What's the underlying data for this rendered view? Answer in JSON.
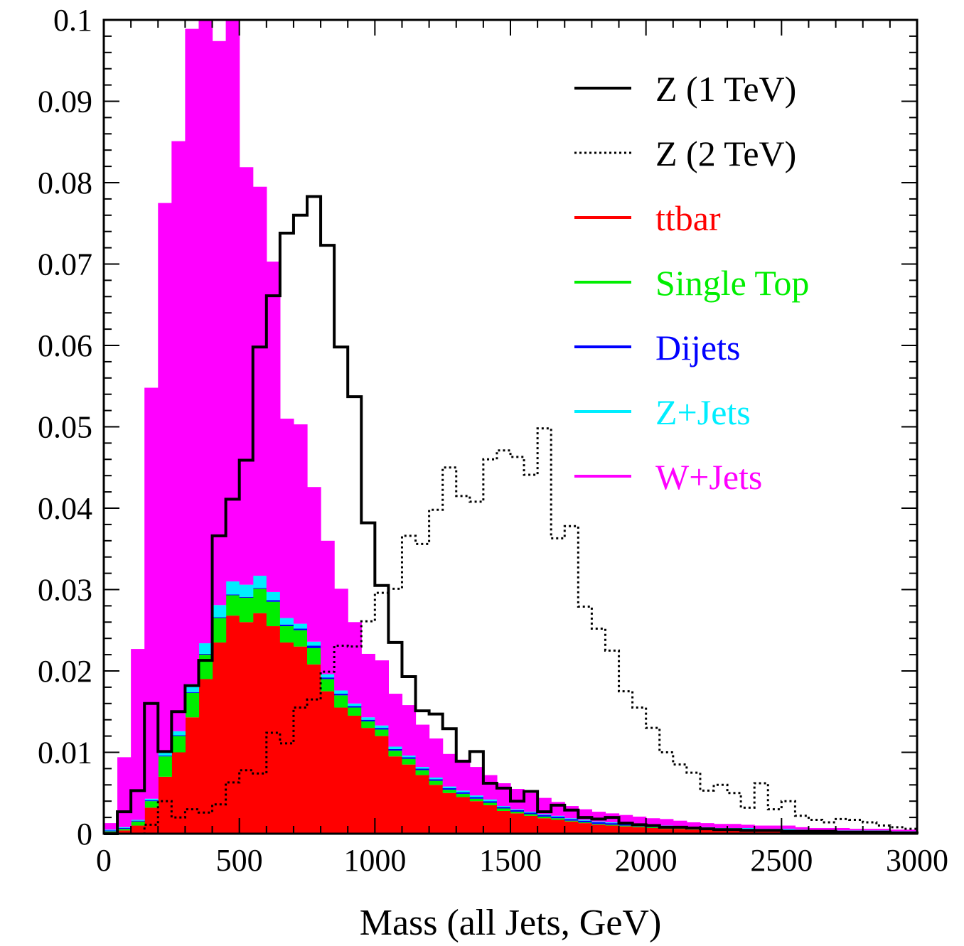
{
  "chart_data": {
    "type": "bar",
    "title": "",
    "xlabel": "Mass (all Jets, GeV)",
    "ylabel": "",
    "xlim": [
      0,
      3000
    ],
    "ylim": [
      0,
      0.1
    ],
    "grid": false,
    "legend_position": "top-right",
    "bin_width": 50,
    "x_tick_labels": [
      "0",
      "500",
      "1000",
      "1500",
      "2000",
      "2500",
      "3000"
    ],
    "y_tick_labels": [
      "0",
      "0.01",
      "0.02",
      "0.03",
      "0.04",
      "0.05",
      "0.06",
      "0.07",
      "0.08",
      "0.09",
      "0.1"
    ],
    "stack_order_note_colors": {
      "ttbar": "#ff0000",
      "single_top": "#00ee00",
      "dijets": "#0000ff",
      "zjets": "#00eeff",
      "wjets": "#ff00ff"
    },
    "stacked_series": [
      {
        "name": "ttbar",
        "color": "#ff0000",
        "values": [
          0.0002,
          0.0004,
          0.001,
          0.0032,
          0.007,
          0.01,
          0.0143,
          0.019,
          0.0235,
          0.0268,
          0.026,
          0.0271,
          0.0255,
          0.0235,
          0.023,
          0.0208,
          0.0175,
          0.0155,
          0.0145,
          0.013,
          0.012,
          0.0095,
          0.0085,
          0.0072,
          0.006,
          0.005,
          0.0045,
          0.004,
          0.0035,
          0.0028,
          0.0025,
          0.0022,
          0.0019,
          0.0017,
          0.0015,
          0.0013,
          0.0011,
          0.001,
          0.0009,
          0.0008,
          0.0007,
          0.0006,
          0.0006,
          0.0005,
          0.0005,
          0.0004,
          0.0004,
          0.0004,
          0.0003,
          0.0003,
          0.0003,
          0.0003,
          0.0002,
          0.0002,
          0.0002,
          0.0002,
          0.0002,
          0.0002,
          0.0001,
          0.0001
        ]
      },
      {
        "name": "Single Top",
        "color": "#00ee00",
        "values": [
          0.0001,
          0.0002,
          0.0005,
          0.0008,
          0.0025,
          0.002,
          0.003,
          0.003,
          0.003,
          0.0025,
          0.003,
          0.003,
          0.003,
          0.002,
          0.002,
          0.002,
          0.0015,
          0.0015,
          0.001,
          0.0008,
          0.0008,
          0.0007,
          0.0007,
          0.0006,
          0.0005,
          0.0004,
          0.0004,
          0.0003,
          0.0003,
          0.0003,
          0.0002,
          0.0002,
          0.0002,
          0.0002,
          0.0001,
          0.0001,
          0.0001,
          0.0001,
          0.0001,
          0.0001,
          0.0001,
          0.0001,
          0.0001,
          0.0001,
          0.0001,
          0.0001,
          0.0001,
          0.0001,
          0.0001,
          0.0001,
          0.0001,
          0.0,
          0.0,
          0.0,
          0.0,
          0.0,
          0.0,
          0.0,
          0.0,
          0.0
        ]
      },
      {
        "name": "Dijets",
        "color": "#0000ff",
        "values": [
          0.0001,
          0.0001,
          0.0001,
          0.0001,
          0.0001,
          0.0001,
          0.0001,
          0.0001,
          0.0001,
          0.0001,
          0.0001,
          0.0001,
          0.0002,
          0.0002,
          0.0002,
          0.0003,
          0.0002,
          0.0002,
          0.0002,
          0.0002,
          0.0002,
          0.0002,
          0.0002,
          0.0002,
          0.0002,
          0.0002,
          0.0002,
          0.0002,
          0.0002,
          0.0002,
          0.0002,
          0.0002,
          0.0002,
          0.0002,
          0.0002,
          0.0002,
          0.0002,
          0.0002,
          0.0002,
          0.0002,
          0.0002,
          0.0002,
          0.0001,
          0.0001,
          0.0001,
          0.0001,
          0.0001,
          0.0001,
          0.0001,
          0.0001,
          0.0001,
          0.0001,
          0.0001,
          0.0001,
          0.0001,
          0.0001,
          0.0001,
          0.0001,
          0.0001,
          0.0001
        ]
      },
      {
        "name": "Z+Jets",
        "color": "#00eeff",
        "values": [
          0.0001,
          0.0001,
          0.0001,
          0.0002,
          0.0004,
          0.0005,
          0.001,
          0.0013,
          0.0015,
          0.0016,
          0.0015,
          0.0015,
          0.001,
          0.0008,
          0.0006,
          0.0005,
          0.0004,
          0.0004,
          0.0003,
          0.0003,
          0.0003,
          0.0003,
          0.0002,
          0.0002,
          0.0002,
          0.0002,
          0.0002,
          0.0002,
          0.0002,
          0.0001,
          0.0001,
          0.0001,
          0.0001,
          0.0001,
          0.0001,
          0.0001,
          0.0001,
          0.0001,
          0.0001,
          0.0001,
          0.0001,
          0.0001,
          0.0001,
          0.0001,
          0.0001,
          0.0001,
          0.0001,
          0.0001,
          0.0001,
          0.0001,
          0.0001,
          0.0001,
          0.0001,
          0.0001,
          0.0001,
          0.0001,
          0.0001,
          0.0001,
          0.0001,
          0.0001
        ]
      },
      {
        "name": "W+Jets",
        "color": "#ff00ff",
        "values": [
          0.0008,
          0.0086,
          0.021,
          0.0505,
          0.0675,
          0.0725,
          0.0805,
          0.077,
          0.0693,
          0.071,
          0.0513,
          0.0478,
          0.0406,
          0.0245,
          0.0245,
          0.019,
          0.0164,
          0.0125,
          0.01,
          0.0078,
          0.008,
          0.0065,
          0.0062,
          0.0052,
          0.0048,
          0.004,
          0.0038,
          0.0035,
          0.003,
          0.0028,
          0.0025,
          0.0023,
          0.002,
          0.0017,
          0.0015,
          0.0013,
          0.0012,
          0.0011,
          0.001,
          0.0009,
          0.0008,
          0.0008,
          0.0007,
          0.0006,
          0.0005,
          0.0005,
          0.0005,
          0.0004,
          0.0004,
          0.0004,
          0.0004,
          0.0003,
          0.0003,
          0.0003,
          0.0003,
          0.0002,
          0.0002,
          0.0002,
          0.0002,
          0.0002
        ]
      }
    ],
    "line_series": [
      {
        "name": "Z (1 TeV)",
        "color": "#000000",
        "style": "solid",
        "values": [
          0.0,
          0.0027,
          0.0053,
          0.016,
          0.0101,
          0.015,
          0.0182,
          0.0213,
          0.0366,
          0.0411,
          0.0459,
          0.0598,
          0.0661,
          0.0738,
          0.076,
          0.0783,
          0.0723,
          0.0598,
          0.0537,
          0.0382,
          0.0305,
          0.0235,
          0.0193,
          0.0151,
          0.0147,
          0.0129,
          0.0089,
          0.0101,
          0.0062,
          0.0056,
          0.004,
          0.0052,
          0.0027,
          0.0035,
          0.0029,
          0.002,
          0.0018,
          0.002,
          0.0013,
          0.0011,
          0.001,
          0.0008,
          0.0008,
          0.0007,
          0.0006,
          0.0005,
          0.0005,
          0.0004,
          0.0004,
          0.0004,
          0.0003,
          0.0003,
          0.0003,
          0.0003,
          0.0002,
          0.0002,
          0.0002,
          0.0002,
          0.0001,
          0.0001
        ]
      },
      {
        "name": "Z (2 TeV)",
        "color": "#000000",
        "style": "dotted",
        "values": [
          0.0,
          0.0,
          0.0,
          0.0011,
          0.004,
          0.002,
          0.003,
          0.0026,
          0.0036,
          0.0063,
          0.0078,
          0.0074,
          0.0124,
          0.0111,
          0.0155,
          0.0165,
          0.0199,
          0.0231,
          0.023,
          0.0261,
          0.0296,
          0.0301,
          0.0366,
          0.0356,
          0.0398,
          0.045,
          0.0415,
          0.0408,
          0.046,
          0.0471,
          0.0463,
          0.0441,
          0.0498,
          0.0363,
          0.0378,
          0.0279,
          0.0252,
          0.0225,
          0.0175,
          0.0155,
          0.013,
          0.01,
          0.0085,
          0.0075,
          0.0053,
          0.006,
          0.005,
          0.0032,
          0.0062,
          0.003,
          0.004,
          0.0022,
          0.0017,
          0.0014,
          0.0018,
          0.0017,
          0.0014,
          0.001,
          0.0008,
          0.0006
        ]
      }
    ],
    "legend": [
      {
        "label": "Z (1 TeV)",
        "color": "#000000",
        "text_color": "#000000",
        "style": "solid"
      },
      {
        "label": "Z (2 TeV)",
        "color": "#000000",
        "text_color": "#000000",
        "style": "dotted"
      },
      {
        "label": "ttbar",
        "color": "#ff0000",
        "text_color": "#ff0000",
        "style": "solid"
      },
      {
        "label": "Single Top",
        "color": "#00ee00",
        "text_color": "#00ee00",
        "style": "solid"
      },
      {
        "label": "Dijets",
        "color": "#0000ff",
        "text_color": "#0000ff",
        "style": "solid"
      },
      {
        "label": "Z+Jets",
        "color": "#00eeff",
        "text_color": "#00eeff",
        "style": "solid"
      },
      {
        "label": "W+Jets",
        "color": "#ff00ff",
        "text_color": "#ff00ff",
        "style": "solid"
      }
    ]
  }
}
